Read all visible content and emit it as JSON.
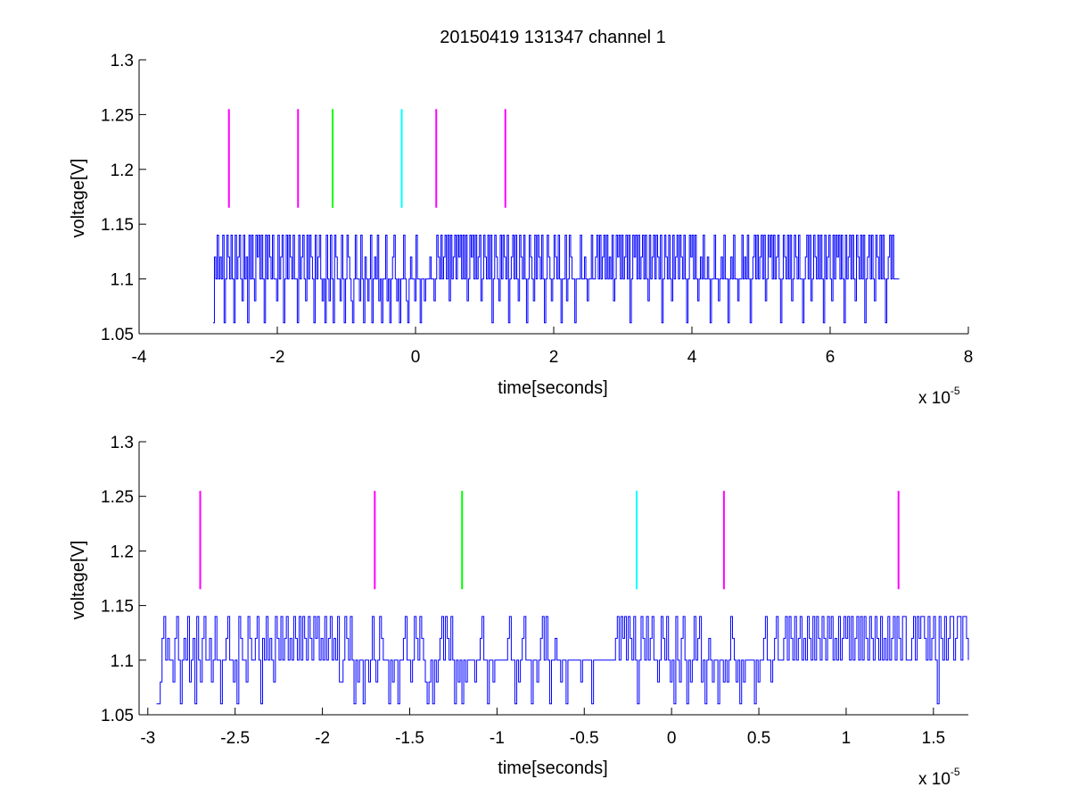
{
  "chart_data": [
    {
      "type": "line",
      "title": "20150419 131347 channel 1",
      "xlabel": "time[seconds]",
      "ylabel": "voltage[V]",
      "x_exponent_label": "x 10",
      "x_exponent_sup": "-5",
      "xlim": [
        -4,
        8
      ],
      "ylim": [
        1.05,
        1.3
      ],
      "xticks": [
        -4,
        -2,
        0,
        2,
        4,
        6,
        8
      ],
      "xtick_labels": [
        "-4",
        "-2",
        "0",
        "2",
        "4",
        "6",
        "8"
      ],
      "yticks": [
        1.05,
        1.1,
        1.15,
        1.2,
        1.25,
        1.3
      ],
      "ytick_labels": [
        "1.05",
        "1.1",
        "1.15",
        "1.2",
        "1.25",
        "1.3"
      ],
      "grid": false,
      "signal": {
        "color": "#0000ff",
        "x_start": -2.93,
        "x_end": 7.0,
        "step": 0.04,
        "levels": [
          1.06,
          1.08,
          1.1,
          1.12,
          1.14
        ],
        "values": [
          1.06,
          1.12,
          1.1,
          1.14,
          1.1,
          1.12,
          1.1,
          1.14,
          1.06,
          1.1,
          1.14,
          1.12,
          1.1,
          1.14,
          1.1,
          1.06,
          1.14,
          1.1,
          1.12,
          1.14,
          1.1,
          1.08,
          1.14,
          1.1,
          1.12,
          1.06,
          1.14,
          1.1,
          1.14,
          1.1,
          1.08,
          1.14,
          1.12,
          1.14,
          1.1,
          1.14,
          1.1,
          1.06,
          1.14,
          1.1,
          1.14,
          1.12,
          1.1,
          1.14,
          1.1,
          1.1,
          1.08,
          1.14,
          1.1,
          1.12,
          1.14,
          1.06,
          1.1,
          1.14,
          1.1,
          1.14,
          1.12,
          1.1,
          1.14,
          1.1,
          1.1,
          1.06,
          1.14,
          1.1,
          1.12,
          1.14,
          1.1,
          1.08,
          1.14,
          1.1,
          1.14,
          1.12,
          1.1,
          1.06,
          1.14,
          1.1,
          1.12,
          1.14,
          1.1,
          1.08,
          1.1,
          1.06,
          1.14,
          1.1,
          1.08,
          1.14,
          1.1,
          1.06,
          1.14,
          1.12,
          1.1,
          1.1,
          1.08,
          1.14,
          1.1,
          1.06,
          1.1,
          1.14,
          1.12,
          1.1,
          1.08,
          1.06,
          1.1,
          1.14,
          1.1,
          1.1,
          1.08,
          1.14,
          1.1,
          1.06,
          1.12,
          1.1,
          1.08,
          1.1,
          1.14,
          1.06,
          1.1,
          1.12,
          1.1,
          1.14,
          1.08,
          1.1,
          1.06,
          1.1,
          1.1,
          1.14,
          1.08,
          1.1,
          1.06,
          1.1,
          1.12,
          1.14,
          1.1,
          1.08,
          1.1,
          1.06,
          1.1,
          1.1,
          1.14,
          1.1,
          1.08,
          1.06,
          1.1,
          1.12,
          1.1,
          1.1,
          1.08,
          1.14,
          1.1,
          1.1,
          1.06,
          1.1,
          1.1,
          1.08,
          1.1,
          1.1,
          1.1,
          1.12,
          1.1,
          1.1,
          1.08,
          1.1,
          1.14,
          1.12,
          1.1,
          1.14,
          1.1,
          1.12,
          1.14,
          1.1,
          1.14,
          1.08,
          1.14,
          1.1,
          1.12,
          1.14,
          1.1,
          1.14,
          1.12,
          1.14,
          1.1,
          1.14,
          1.1,
          1.14,
          1.08,
          1.1,
          1.14,
          1.12,
          1.14,
          1.1,
          1.14,
          1.1,
          1.12,
          1.14,
          1.08,
          1.1,
          1.14,
          1.12,
          1.1,
          1.14,
          1.1,
          1.14,
          1.06,
          1.1,
          1.14,
          1.12,
          1.1,
          1.08,
          1.14,
          1.1,
          1.14,
          1.12,
          1.1,
          1.14,
          1.06,
          1.1,
          1.12,
          1.14,
          1.1,
          1.14,
          1.1,
          1.08,
          1.14,
          1.12,
          1.1,
          1.14,
          1.1,
          1.06,
          1.1,
          1.14,
          1.12,
          1.1,
          1.08,
          1.14,
          1.1,
          1.14,
          1.12,
          1.1,
          1.14,
          1.1,
          1.06,
          1.1,
          1.14,
          1.12,
          1.1,
          1.08,
          1.1,
          1.14,
          1.12,
          1.1,
          1.14,
          1.1,
          1.06,
          1.1,
          1.1,
          1.14,
          1.08,
          1.1,
          1.14,
          1.12,
          1.1,
          1.1,
          1.06,
          1.1,
          1.1,
          1.1,
          1.14,
          1.1,
          1.1,
          1.12,
          1.1,
          1.08,
          1.1,
          1.1,
          1.14,
          1.1,
          1.1,
          1.12,
          1.14,
          1.1,
          1.14,
          1.1,
          1.12,
          1.14,
          1.1,
          1.14,
          1.1,
          1.12,
          1.1,
          1.14,
          1.08,
          1.1,
          1.14,
          1.12,
          1.14,
          1.1,
          1.14,
          1.1,
          1.12,
          1.14,
          1.1,
          1.14,
          1.06,
          1.1,
          1.14,
          1.12,
          1.14,
          1.1,
          1.14,
          1.1,
          1.12,
          1.14,
          1.1,
          1.14,
          1.1,
          1.08,
          1.14,
          1.1,
          1.12,
          1.14,
          1.1,
          1.14,
          1.12,
          1.1,
          1.14,
          1.06,
          1.1,
          1.14,
          1.12,
          1.1,
          1.14,
          1.1,
          1.08,
          1.14,
          1.1,
          1.12,
          1.14,
          1.1,
          1.14,
          1.12,
          1.1,
          1.14,
          1.1,
          1.06,
          1.1,
          1.14,
          1.12,
          1.14,
          1.1,
          1.14,
          1.1,
          1.08,
          1.1,
          1.12,
          1.1,
          1.14,
          1.1,
          1.1,
          1.12,
          1.1,
          1.06,
          1.1,
          1.1,
          1.14,
          1.1,
          1.1,
          1.08,
          1.1,
          1.12,
          1.1,
          1.14,
          1.1,
          1.1,
          1.06,
          1.1,
          1.12,
          1.1,
          1.14,
          1.1,
          1.1,
          1.08,
          1.1,
          1.1,
          1.14,
          1.1,
          1.12,
          1.1,
          1.14,
          1.1,
          1.06,
          1.1,
          1.12,
          1.14,
          1.1,
          1.14,
          1.1,
          1.12,
          1.14,
          1.1,
          1.14,
          1.08,
          1.1,
          1.14,
          1.12,
          1.14,
          1.1,
          1.14,
          1.1,
          1.12,
          1.14,
          1.1,
          1.06,
          1.1,
          1.14,
          1.12,
          1.1,
          1.14,
          1.1,
          1.14,
          1.08,
          1.1,
          1.14,
          1.12,
          1.1,
          1.14,
          1.1,
          1.1,
          1.06,
          1.1,
          1.12,
          1.14,
          1.1,
          1.14,
          1.08,
          1.1,
          1.14,
          1.12,
          1.1,
          1.14,
          1.1,
          1.14,
          1.1,
          1.06,
          1.14,
          1.1,
          1.12,
          1.14,
          1.1,
          1.08,
          1.14,
          1.1,
          1.14,
          1.12,
          1.14,
          1.1,
          1.14,
          1.1,
          1.06,
          1.14,
          1.1,
          1.12,
          1.14,
          1.1,
          1.14,
          1.1,
          1.08,
          1.14,
          1.12,
          1.1,
          1.14,
          1.1,
          1.14,
          1.06,
          1.1,
          1.12,
          1.14,
          1.1,
          1.14,
          1.1,
          1.08,
          1.14,
          1.12,
          1.1,
          1.14,
          1.1,
          1.14,
          1.1,
          1.06,
          1.1,
          1.12,
          1.14,
          1.1,
          1.14,
          1.1,
          1.1,
          1.1,
          1.1,
          1.1
        ]
      },
      "markers": [
        {
          "x": -2.7,
          "y_from": 1.165,
          "y_to": 1.255,
          "color": "#ff00ff"
        },
        {
          "x": -1.7,
          "y_from": 1.165,
          "y_to": 1.255,
          "color": "#ff00ff"
        },
        {
          "x": -1.2,
          "y_from": 1.165,
          "y_to": 1.255,
          "color": "#00ff00"
        },
        {
          "x": -0.2,
          "y_from": 1.165,
          "y_to": 1.255,
          "color": "#00ffff"
        },
        {
          "x": 0.3,
          "y_from": 1.165,
          "y_to": 1.255,
          "color": "#ff00ff"
        },
        {
          "x": 1.3,
          "y_from": 1.165,
          "y_to": 1.255,
          "color": "#ff00ff"
        }
      ]
    },
    {
      "type": "line",
      "title": "",
      "xlabel": "time[seconds]",
      "ylabel": "voltage[V]",
      "x_exponent_label": "x 10",
      "x_exponent_sup": "-5",
      "xlim": [
        -3.05,
        1.7
      ],
      "ylim": [
        1.05,
        1.3
      ],
      "xticks": [
        -3,
        -2.5,
        -2,
        -1.5,
        -1,
        -0.5,
        0,
        0.5,
        1,
        1.5
      ],
      "xtick_labels": [
        "-3",
        "-2.5",
        "-2",
        "-1.5",
        "-1",
        "-0.5",
        "0",
        "0.5",
        "1",
        "1.5"
      ],
      "yticks": [
        1.05,
        1.1,
        1.15,
        1.2,
        1.25,
        1.3
      ],
      "ytick_labels": [
        "1.05",
        "1.1",
        "1.15",
        "1.2",
        "1.25",
        "1.3"
      ],
      "grid": false,
      "signal": {
        "color": "#0000ff",
        "x_start": -2.95,
        "x_end": 1.7,
        "step": 0.01,
        "levels": [
          1.06,
          1.08,
          1.1,
          1.12,
          1.14
        ],
        "values": [
          1.06,
          1.06,
          1.08,
          1.12,
          1.14,
          1.1,
          1.12,
          1.1,
          1.1,
          1.08,
          1.12,
          1.14,
          1.1,
          1.06,
          1.1,
          1.12,
          1.1,
          1.14,
          1.08,
          1.1,
          1.12,
          1.06,
          1.14,
          1.1,
          1.08,
          1.12,
          1.14,
          1.1,
          1.1,
          1.12,
          1.08,
          1.1,
          1.14,
          1.1,
          1.1,
          1.06,
          1.1,
          1.1,
          1.12,
          1.14,
          1.1,
          1.1,
          1.08,
          1.1,
          1.06,
          1.14,
          1.12,
          1.1,
          1.1,
          1.08,
          1.14,
          1.12,
          1.1,
          1.1,
          1.12,
          1.14,
          1.1,
          1.06,
          1.12,
          1.1,
          1.14,
          1.1,
          1.12,
          1.1,
          1.08,
          1.14,
          1.12,
          1.1,
          1.14,
          1.1,
          1.12,
          1.14,
          1.1,
          1.12,
          1.1,
          1.14,
          1.12,
          1.1,
          1.14,
          1.1,
          1.14,
          1.12,
          1.1,
          1.14,
          1.12,
          1.1,
          1.14,
          1.12,
          1.14,
          1.1,
          1.12,
          1.1,
          1.14,
          1.1,
          1.12,
          1.14,
          1.1,
          1.12,
          1.1,
          1.14,
          1.08,
          1.08,
          1.1,
          1.14,
          1.12,
          1.1,
          1.14,
          1.1,
          1.06,
          1.1,
          1.08,
          1.1,
          1.1,
          1.06,
          1.1,
          1.1,
          1.08,
          1.1,
          1.14,
          1.1,
          1.08,
          1.1,
          1.14,
          1.12,
          1.1,
          1.1,
          1.1,
          1.06,
          1.1,
          1.08,
          1.1,
          1.1,
          1.06,
          1.1,
          1.1,
          1.12,
          1.14,
          1.1,
          1.1,
          1.08,
          1.1,
          1.14,
          1.12,
          1.1,
          1.14,
          1.12,
          1.1,
          1.08,
          1.06,
          1.08,
          1.1,
          1.06,
          1.1,
          1.08,
          1.1,
          1.12,
          1.14,
          1.1,
          1.14,
          1.12,
          1.1,
          1.14,
          1.1,
          1.06,
          1.1,
          1.08,
          1.1,
          1.06,
          1.1,
          1.08,
          1.1,
          1.1,
          1.1,
          1.1,
          1.08,
          1.1,
          1.1,
          1.12,
          1.14,
          1.1,
          1.1,
          1.06,
          1.1,
          1.1,
          1.08,
          1.1,
          1.1,
          1.1,
          1.1,
          1.1,
          1.1,
          1.1,
          1.12,
          1.14,
          1.1,
          1.1,
          1.06,
          1.1,
          1.08,
          1.1,
          1.12,
          1.14,
          1.1,
          1.1,
          1.1,
          1.06,
          1.1,
          1.1,
          1.08,
          1.1,
          1.12,
          1.14,
          1.1,
          1.14,
          1.1,
          1.06,
          1.1,
          1.1,
          1.12,
          1.1,
          1.1,
          1.08,
          1.1,
          1.1,
          1.06,
          1.1,
          1.1,
          1.1,
          1.1,
          1.1,
          1.1,
          1.1,
          1.08,
          1.1,
          1.1,
          1.1,
          1.1,
          1.1,
          1.06,
          1.1,
          1.1,
          1.1,
          1.1,
          1.1,
          1.1,
          1.1,
          1.1,
          1.1,
          1.1,
          1.1,
          1.1,
          1.12,
          1.14,
          1.1,
          1.14,
          1.12,
          1.14,
          1.1,
          1.14,
          1.12,
          1.1,
          1.14,
          1.1,
          1.06,
          1.1,
          1.14,
          1.12,
          1.1,
          1.14,
          1.1,
          1.12,
          1.14,
          1.1,
          1.1,
          1.08,
          1.1,
          1.14,
          1.12,
          1.1,
          1.14,
          1.1,
          1.08,
          1.1,
          1.06,
          1.14,
          1.1,
          1.08,
          1.12,
          1.14,
          1.1,
          1.06,
          1.1,
          1.08,
          1.1,
          1.14,
          1.1,
          1.12,
          1.14,
          1.08,
          1.1,
          1.06,
          1.1,
          1.12,
          1.1,
          1.08,
          1.1,
          1.1,
          1.06,
          1.1,
          1.1,
          1.08,
          1.1,
          1.08,
          1.1,
          1.14,
          1.12,
          1.1,
          1.08,
          1.1,
          1.06,
          1.1,
          1.08,
          1.1,
          1.1,
          1.1,
          1.1,
          1.1,
          1.06,
          1.1,
          1.08,
          1.1,
          1.1,
          1.12,
          1.14,
          1.1,
          1.1,
          1.08,
          1.1,
          1.12,
          1.14,
          1.1,
          1.1,
          1.1,
          1.12,
          1.14,
          1.1,
          1.14,
          1.12,
          1.1,
          1.14,
          1.1,
          1.12,
          1.14,
          1.1,
          1.12,
          1.1,
          1.14,
          1.12,
          1.1,
          1.14,
          1.1,
          1.14,
          1.12,
          1.1,
          1.14,
          1.12,
          1.1,
          1.14,
          1.12,
          1.14,
          1.1,
          1.12,
          1.1,
          1.14,
          1.1,
          1.12,
          1.14,
          1.12,
          1.14,
          1.1,
          1.14,
          1.1,
          1.12,
          1.14,
          1.1,
          1.14,
          1.1,
          1.14,
          1.12,
          1.1,
          1.14,
          1.12,
          1.1,
          1.14,
          1.12,
          1.1,
          1.14,
          1.1,
          1.12,
          1.1,
          1.14,
          1.1,
          1.12,
          1.14,
          1.1,
          1.14,
          1.12,
          1.1,
          1.14,
          1.14,
          1.1,
          1.1,
          1.1,
          1.12,
          1.14,
          1.1,
          1.14,
          1.12,
          1.14,
          1.14,
          1.12,
          1.1,
          1.14,
          1.1,
          1.12,
          1.14,
          1.1,
          1.06,
          1.14,
          1.12,
          1.1,
          1.14,
          1.1,
          1.12,
          1.14,
          1.14,
          1.1,
          1.12,
          1.14,
          1.14,
          1.1,
          1.14,
          1.14,
          1.12,
          1.1
        ]
      },
      "markers": [
        {
          "x": -2.7,
          "y_from": 1.165,
          "y_to": 1.255,
          "color": "#ff00ff"
        },
        {
          "x": -1.7,
          "y_from": 1.165,
          "y_to": 1.255,
          "color": "#ff00ff"
        },
        {
          "x": -1.2,
          "y_from": 1.165,
          "y_to": 1.255,
          "color": "#00ff00"
        },
        {
          "x": -0.2,
          "y_from": 1.165,
          "y_to": 1.255,
          "color": "#00ffff"
        },
        {
          "x": 0.3,
          "y_from": 1.165,
          "y_to": 1.255,
          "color": "#ff00ff"
        },
        {
          "x": 1.3,
          "y_from": 1.165,
          "y_to": 1.255,
          "color": "#ff00ff"
        }
      ]
    }
  ]
}
